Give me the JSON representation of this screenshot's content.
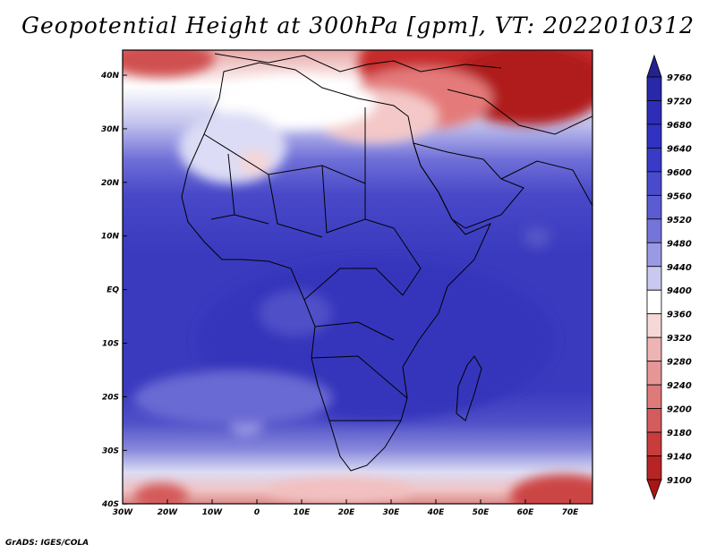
{
  "title": "Geopotential Height at 300hPa [gpm], VT: 2022010312",
  "credit": "GrADS: IGES/COLA",
  "colors": {
    "deep_blue": "#2b2bb8",
    "mid_blue": "#4545c8",
    "light_blue": "#d8d8f2",
    "white": "#ffffff",
    "light_red": "#f0c0c0",
    "deep_red": "#b81e1e"
  },
  "map": {
    "lon_ticks": [
      "30W",
      "20W",
      "10W",
      "0",
      "10E",
      "20E",
      "30E",
      "40E",
      "50E",
      "60E",
      "70E"
    ],
    "lat_ticks": [
      "40N",
      "30N",
      "20N",
      "10N",
      "EQ",
      "10S",
      "20S",
      "30S",
      "40S"
    ]
  },
  "colorbar": {
    "labels": [
      "9760",
      "9720",
      "9680",
      "9640",
      "9600",
      "9560",
      "9520",
      "9480",
      "9440",
      "9400",
      "9360",
      "9320",
      "9280",
      "9240",
      "9200",
      "9180",
      "9140",
      "9100"
    ],
    "colors": [
      "#23238f",
      "#2828a8",
      "#2d2db8",
      "#3232c2",
      "#3a3ac8",
      "#4a4acc",
      "#5c5cd2",
      "#7474da",
      "#9a9ae4",
      "#c8c8f0",
      "#ffffff",
      "#f6d8d8",
      "#eeb4b4",
      "#e69696",
      "#de7a7a",
      "#d45c5c",
      "#c83c3c",
      "#b82424",
      "#a81616"
    ]
  }
}
